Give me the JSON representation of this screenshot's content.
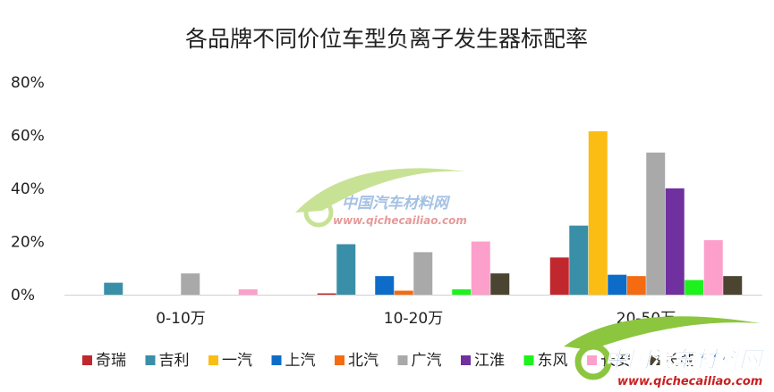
{
  "chart_data": {
    "type": "bar",
    "title": "各品牌不同价位车型负离子发生器标配率",
    "categories": [
      "0-10万",
      "10-20万",
      "20-50万"
    ],
    "yticks": [
      "0%",
      "20%",
      "40%",
      "60%",
      "80%"
    ],
    "ylim": [
      0,
      80
    ],
    "grid": false,
    "legend_position": "bottom",
    "series": [
      {
        "name": "奇瑞",
        "color": "#c0282d",
        "values": [
          0,
          0.5,
          14
        ]
      },
      {
        "name": "吉利",
        "color": "#3a8fa8",
        "values": [
          4.5,
          19,
          26
        ]
      },
      {
        "name": "一汽",
        "color": "#fbbd14",
        "values": [
          0,
          0,
          61.5
        ]
      },
      {
        "name": "上汽",
        "color": "#0e6cc9",
        "values": [
          0,
          7,
          7.5
        ]
      },
      {
        "name": "北汽",
        "color": "#f46b12",
        "values": [
          0,
          1.5,
          7
        ]
      },
      {
        "name": "广汽",
        "color": "#a9a9a9",
        "values": [
          8,
          16,
          53.5
        ]
      },
      {
        "name": "江淮",
        "color": "#7030a0",
        "values": [
          0,
          0,
          40
        ]
      },
      {
        "name": "东风",
        "color": "#1df21d",
        "values": [
          0,
          2,
          5.5
        ]
      },
      {
        "name": "长安",
        "color": "#fc9fcb",
        "values": [
          2,
          20,
          20.5
        ]
      },
      {
        "name": "长城",
        "color": "#4a4431",
        "values": [
          0,
          8,
          7
        ]
      }
    ]
  },
  "watermarks": {
    "center_cn": "中国汽车材料网",
    "center_url": "www.qichecailiao.com",
    "corner_cn": "中国汽车材料网",
    "corner_url": "www.qichecailiao.com"
  }
}
